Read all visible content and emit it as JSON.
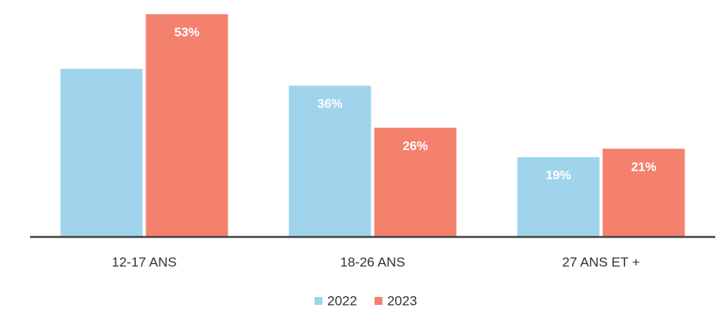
{
  "chart_data": {
    "type": "bar",
    "categories": [
      "12-17 ANS",
      "18-26 ANS",
      "27 ANS ET +"
    ],
    "series": [
      {
        "name": "2022",
        "color": "#9fd4ec",
        "values": [
          40,
          36,
          19
        ],
        "value_labels": [
          null,
          "36%",
          "19%"
        ]
      },
      {
        "name": "2023",
        "color": "#f4806e",
        "values": [
          53,
          26,
          21
        ],
        "value_labels": [
          "53%",
          "26%",
          "21%"
        ]
      }
    ]
  }
}
